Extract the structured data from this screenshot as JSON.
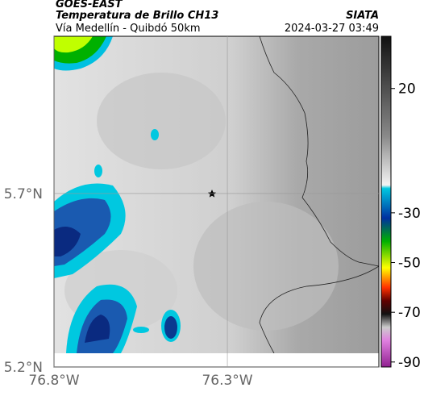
{
  "header": {
    "source": "GOES-EAST",
    "title": "Temperatura de Brillo CH13",
    "subtitle": "Vía Medellín - Quibdó 50km",
    "org": "SIATA",
    "timestamp": "2024-03-27 03:49"
  },
  "map": {
    "xlim": [
      -76.8,
      -75.863
    ],
    "ylim": [
      5.2,
      6.153
    ],
    "xticks": [
      {
        "value": -76.8,
        "label": "76.8°W"
      },
      {
        "value": -76.3,
        "label": "76.3°W"
      }
    ],
    "yticks": [
      {
        "value": 5.7,
        "label": "5.7°N"
      },
      {
        "value": 5.2,
        "label": "5.2°N"
      }
    ]
  },
  "colorbar": {
    "lim": [
      -92,
      41
    ],
    "ticks": [
      20,
      -30,
      -50,
      -70,
      -90
    ]
  }
}
